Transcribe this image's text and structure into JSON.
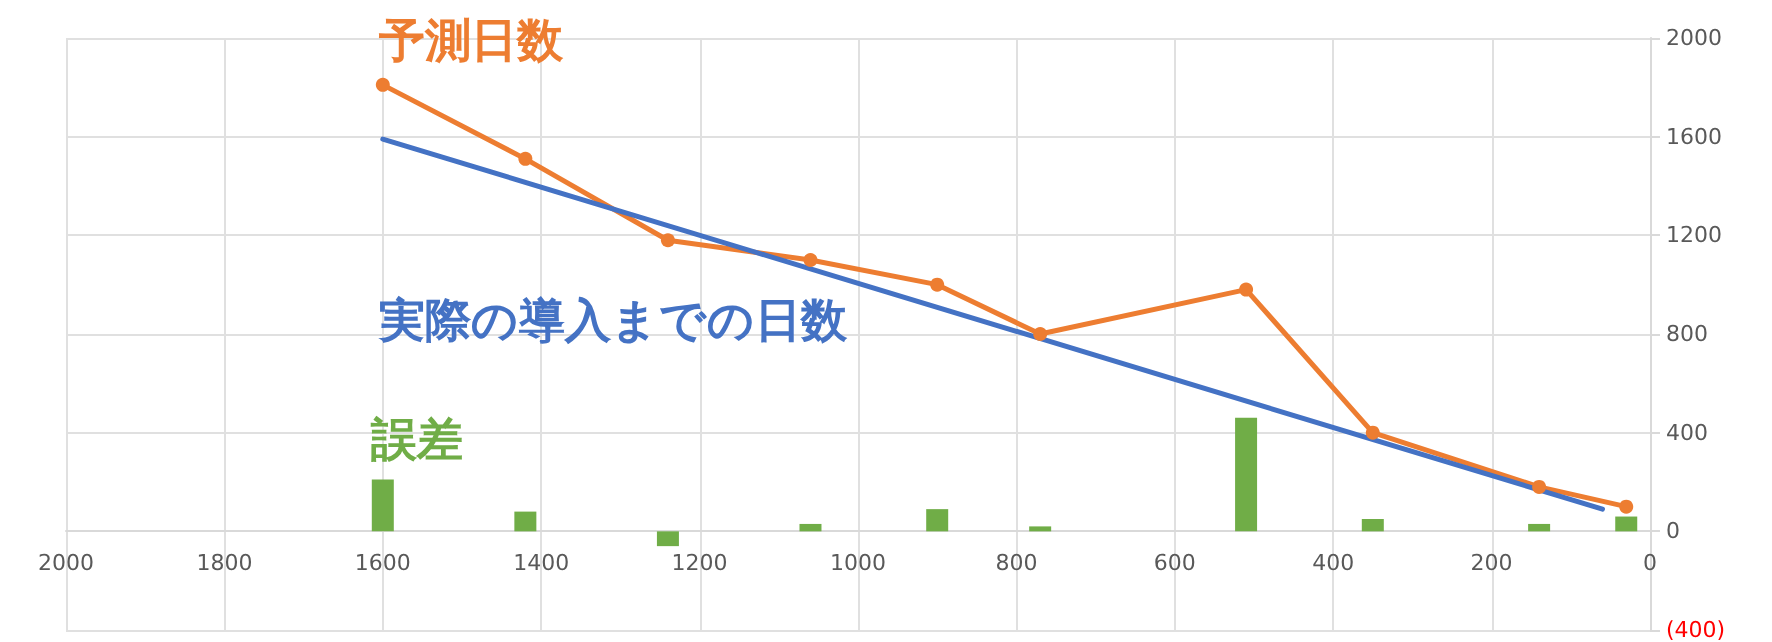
{
  "chart_data": {
    "type": "line",
    "xlim": [
      2000,
      0
    ],
    "xticks": [
      2000,
      1800,
      1600,
      1400,
      1200,
      1000,
      800,
      600,
      400,
      200,
      0
    ],
    "ylim": [
      -400,
      2000
    ],
    "yticks": [
      {
        "value": -400,
        "label": "(400)"
      },
      0,
      400,
      800,
      1200,
      1600,
      2000
    ],
    "grid": true,
    "legend": false,
    "line_style": "solid",
    "series": [
      {
        "name": "予測日数",
        "marker": "circle",
        "color": "#ed7d31",
        "x": [
          1600,
          1420,
          1240,
          1060,
          900,
          770,
          510,
          350,
          140,
          30
        ],
        "values": [
          1810,
          1510,
          1180,
          1100,
          1000,
          800,
          980,
          400,
          180,
          100
        ]
      },
      {
        "name": "実際の導入までの日数",
        "marker": "none",
        "color": "#4472c4",
        "x": [
          1600,
          60
        ],
        "values": [
          1590,
          90
        ]
      },
      {
        "name": "誤差",
        "type": "bar",
        "color": "#70ad47",
        "x": [
          1600,
          1420,
          1240,
          1060,
          900,
          770,
          510,
          350,
          140,
          30
        ],
        "values": [
          210,
          80,
          -60,
          30,
          90,
          20,
          460,
          50,
          30,
          60
        ]
      }
    ]
  }
}
